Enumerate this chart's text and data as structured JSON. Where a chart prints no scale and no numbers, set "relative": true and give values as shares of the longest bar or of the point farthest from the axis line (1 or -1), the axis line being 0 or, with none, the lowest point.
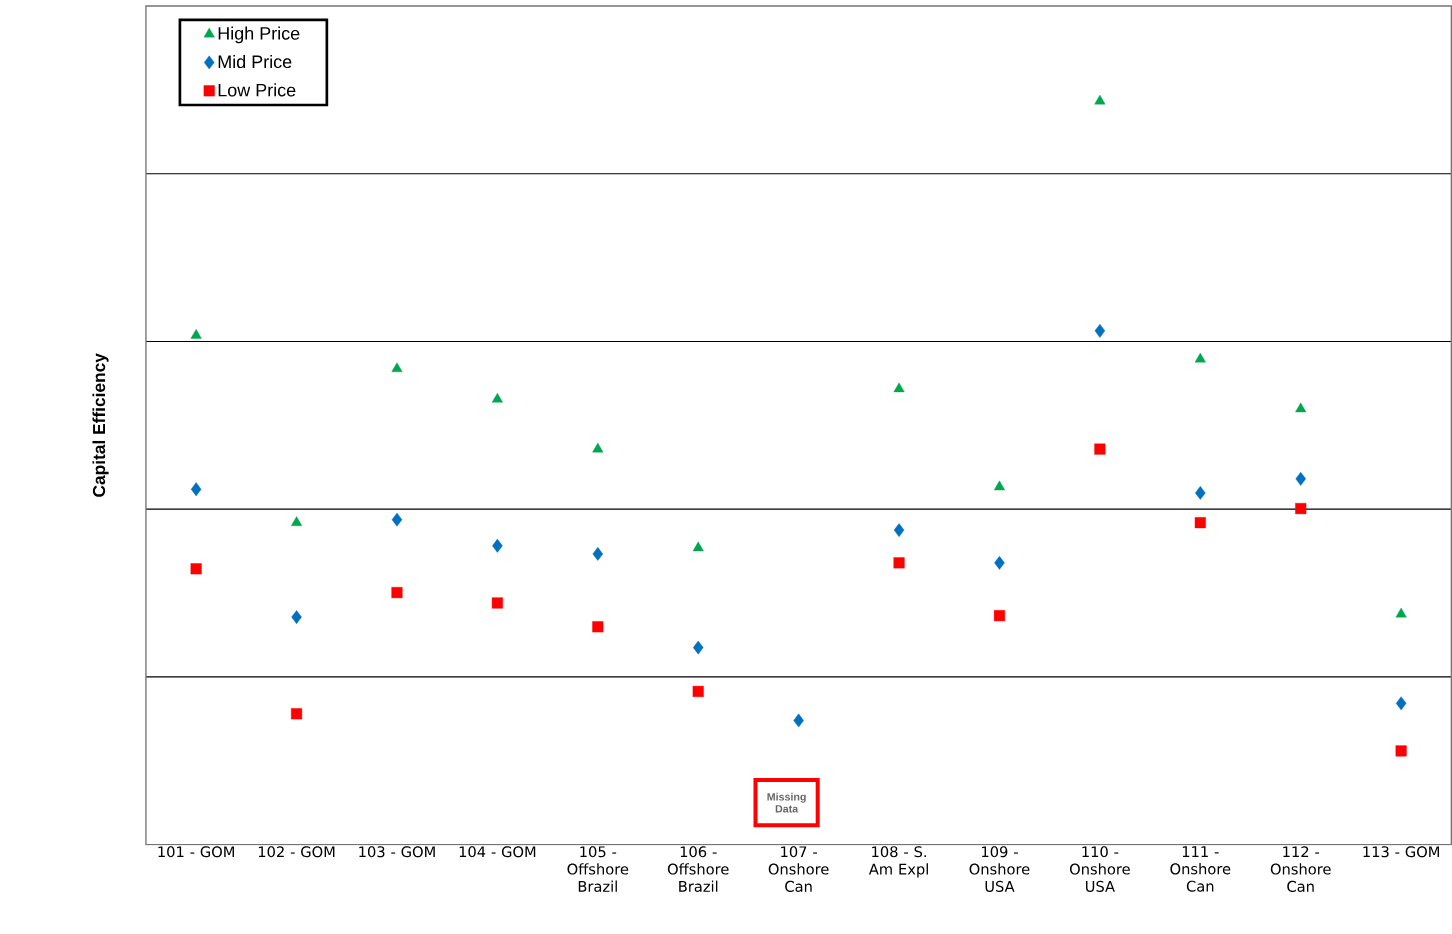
{
  "chart_data": {
    "type": "scatter",
    "relative": true,
    "ylabel": "Capital Efficiency",
    "categories": [
      "101 - GOM",
      "102 - GOM",
      "103 - GOM",
      "104 - GOM",
      "105 - Offshore Brazil",
      "106 - Offshore Brazil",
      "107 - Onshore Can",
      "108 - S. Am Expl",
      "109 - Onshore USA",
      "110 - Onshore USA",
      "111 - Onshore Can",
      "112 - Onshore Can",
      "113 - GOM"
    ],
    "series": [
      {
        "name": "High Price",
        "color": "#00a650",
        "marker": "triangle",
        "values": [
          0.685,
          0.433,
          0.64,
          0.599,
          0.532,
          0.399,
          null,
          0.613,
          0.481,
          1.0,
          0.653,
          0.586,
          0.31
        ]
      },
      {
        "name": "Mid Price",
        "color": "#0070c0",
        "marker": "diamond",
        "values": [
          0.478,
          0.306,
          0.437,
          0.402,
          0.391,
          0.265,
          0.167,
          0.423,
          0.379,
          0.691,
          0.473,
          0.492,
          0.19
        ]
      },
      {
        "name": "Low Price",
        "color": "#ff0000",
        "marker": "square",
        "values": [
          0.371,
          0.176,
          0.339,
          0.325,
          0.293,
          0.206,
          null,
          0.379,
          0.308,
          0.532,
          0.433,
          0.452,
          0.126
        ]
      }
    ],
    "annotations": [
      "Missing Data"
    ],
    "grid": "y",
    "legend": "top left"
  }
}
